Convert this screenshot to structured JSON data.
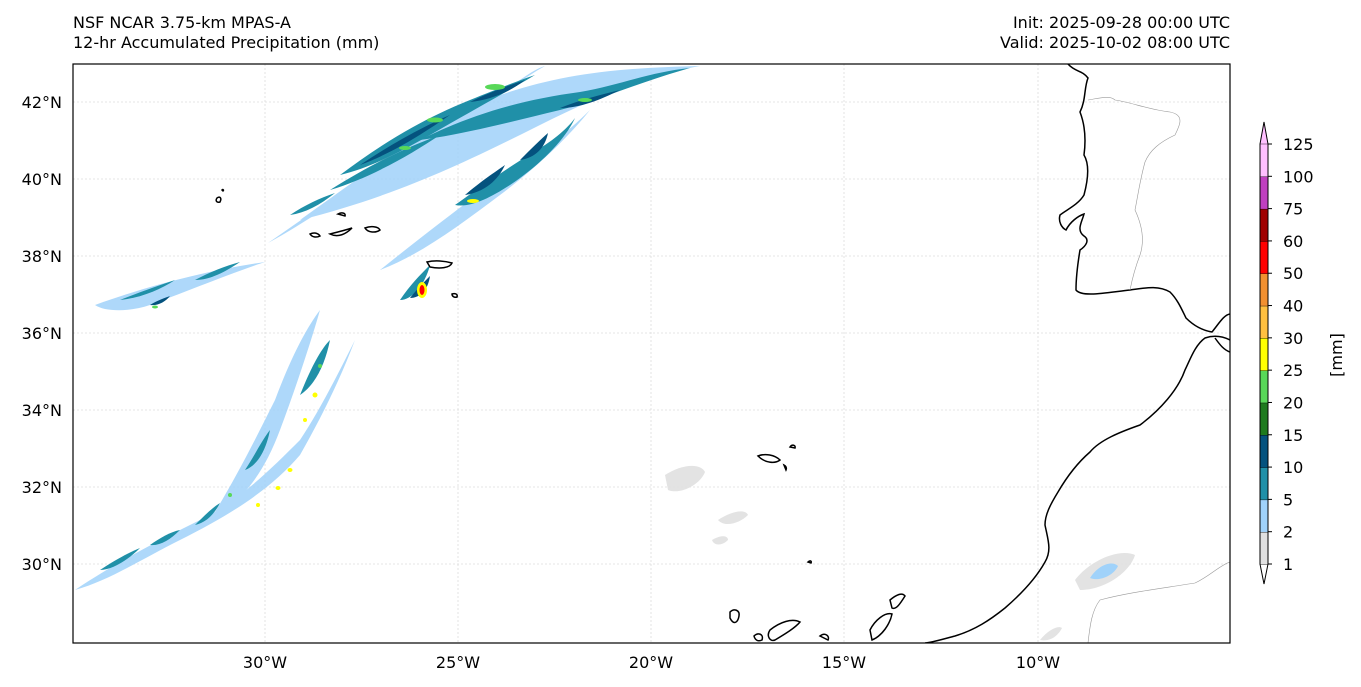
{
  "header": {
    "model": "NSF NCAR 3.75-km MPAS-A",
    "field": "12-hr Accumulated Precipitation (mm)",
    "init": "Init: 2025-09-28 00:00 UTC",
    "valid": "Valid: 2025-10-02 08:00 UTC"
  },
  "map": {
    "lat_labels": [
      "42°N",
      "40°N",
      "38°N",
      "36°N",
      "34°N",
      "32°N",
      "30°N"
    ],
    "lon_labels": [
      "30°W",
      "25°W",
      "20°W",
      "15°W",
      "10°W"
    ]
  },
  "colorbar": {
    "unit_label": "[mm]",
    "levels": [
      "1",
      "2",
      "5",
      "10",
      "15",
      "20",
      "25",
      "30",
      "40",
      "50",
      "60",
      "75",
      "100",
      "125"
    ],
    "colors": [
      "#e0e0e0",
      "#a0d2fa",
      "#2090a8",
      "#04527e",
      "#1e7a1e",
      "#58d858",
      "#ffff00",
      "#ffc040",
      "#f29030",
      "#ff0000",
      "#a00000",
      "#c040c0",
      "#ffc0ff"
    ]
  }
}
